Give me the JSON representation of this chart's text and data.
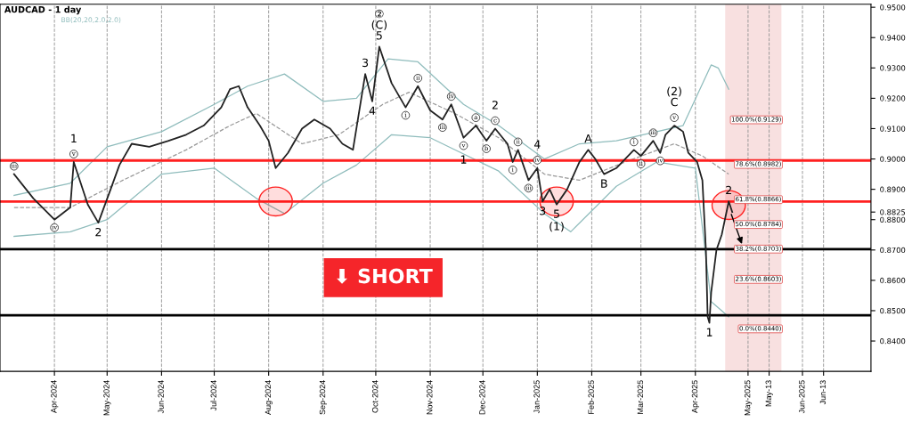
{
  "chart_data": {
    "type": "line",
    "title": "AUDCAD - 1 day",
    "xlim": [
      "2024-03-01",
      "2025-07-10"
    ],
    "xticks": [
      {
        "value": "2024-04-01",
        "label": "Apr-2024"
      },
      {
        "value": "2024-05-01",
        "label": "May-2024"
      },
      {
        "value": "2024-06-01",
        "label": "Jun-2024"
      },
      {
        "value": "2024-07-01",
        "label": "Jul-2024"
      },
      {
        "value": "2024-08-01",
        "label": "Aug-2024"
      },
      {
        "value": "2024-09-01",
        "label": "Sep-2024"
      },
      {
        "value": "2024-10-01",
        "label": "Oct-2024"
      },
      {
        "value": "2024-11-01",
        "label": "Nov-2024"
      },
      {
        "value": "2024-12-01",
        "label": "Dec-2024"
      },
      {
        "value": "2025-01-01",
        "label": "Jan-2025"
      },
      {
        "value": "2025-02-01",
        "label": "Feb-2025"
      },
      {
        "value": "2025-03-01",
        "label": "Mar-2025"
      },
      {
        "value": "2025-04-01",
        "label": "Apr-2025"
      },
      {
        "value": "2025-05-01",
        "label": "May-2025"
      },
      {
        "value": "2025-05-13",
        "label": "May-13"
      },
      {
        "value": "2025-06-01",
        "label": "Jun-2025"
      },
      {
        "value": "2025-06-13",
        "label": "Jun-13"
      }
    ],
    "ylim": [
      0.83,
      0.951
    ],
    "yticks": [
      {
        "value": 0.84,
        "label": "0.8400"
      },
      {
        "value": 0.85,
        "label": "0.8500"
      },
      {
        "value": 0.86,
        "label": "0.8600"
      },
      {
        "value": 0.87,
        "label": "0.8700"
      },
      {
        "value": 0.88,
        "label": "0.8800"
      },
      {
        "value": 0.8825,
        "label": "0.8825"
      },
      {
        "value": 0.89,
        "label": "0.8900"
      },
      {
        "value": 0.9,
        "label": "0.9000"
      },
      {
        "value": 0.91,
        "label": "0.9100"
      },
      {
        "value": 0.92,
        "label": "0.9200"
      },
      {
        "value": 0.93,
        "label": "0.9300"
      },
      {
        "value": 0.94,
        "label": "0.9400"
      },
      {
        "value": 0.95,
        "label": "0.9500"
      }
    ],
    "grid": "x",
    "marker": "none",
    "legend": false,
    "series": [
      {
        "color": "#222222",
        "line_style": "solid",
        "x": [
          "2024-03-09",
          "2024-03-20",
          "2024-04-01",
          "2024-04-10",
          "2024-04-12",
          "2024-04-20",
          "2024-04-26",
          "2024-05-03",
          "2024-05-08",
          "2024-05-15",
          "2024-05-25",
          "2024-06-05",
          "2024-06-15",
          "2024-06-25",
          "2024-07-05",
          "2024-07-10",
          "2024-07-15",
          "2024-07-20",
          "2024-07-27",
          "2024-08-01",
          "2024-08-05",
          "2024-08-12",
          "2024-08-20",
          "2024-08-27",
          "2024-09-05",
          "2024-09-12",
          "2024-09-18",
          "2024-09-25",
          "2024-09-29",
          "2024-10-03",
          "2024-10-10",
          "2024-10-18",
          "2024-10-25",
          "2024-11-01",
          "2024-11-08",
          "2024-11-13",
          "2024-11-20",
          "2024-11-27",
          "2024-12-03",
          "2024-12-08",
          "2024-12-15",
          "2024-12-18",
          "2024-12-21",
          "2024-12-27",
          "2025-01-01",
          "2025-01-04",
          "2025-01-08",
          "2025-01-12",
          "2025-01-18",
          "2025-01-25",
          "2025-01-30",
          "2025-02-03",
          "2025-02-08",
          "2025-02-15",
          "2025-02-25",
          "2025-03-01",
          "2025-03-08",
          "2025-03-12",
          "2025-03-15",
          "2025-03-20",
          "2025-03-25",
          "2025-03-28",
          "2025-04-02",
          "2025-04-05",
          "2025-04-07",
          "2025-04-08",
          "2025-04-09",
          "2025-04-10",
          "2025-04-13",
          "2025-04-16",
          "2025-04-20",
          "2025-04-22"
        ],
        "values": [
          0.895,
          0.887,
          0.88,
          0.884,
          0.899,
          0.885,
          0.879,
          0.89,
          0.898,
          0.905,
          0.904,
          0.906,
          0.908,
          0.911,
          0.917,
          0.923,
          0.924,
          0.917,
          0.911,
          0.906,
          0.897,
          0.902,
          0.91,
          0.913,
          0.91,
          0.905,
          0.903,
          0.928,
          0.919,
          0.937,
          0.925,
          0.917,
          0.924,
          0.916,
          0.913,
          0.918,
          0.907,
          0.911,
          0.906,
          0.91,
          0.905,
          0.899,
          0.903,
          0.893,
          0.897,
          0.886,
          0.89,
          0.885,
          0.89,
          0.899,
          0.903,
          0.9,
          0.895,
          0.897,
          0.903,
          0.901,
          0.906,
          0.902,
          0.908,
          0.911,
          0.909,
          0.902,
          0.899,
          0.893,
          0.87,
          0.848,
          0.846,
          0.856,
          0.87,
          0.875,
          0.886,
          0.8825
        ]
      },
      {
        "color": "#8fbcbc",
        "line_style": "solid",
        "x": [
          "2024-03-09",
          "2024-04-10",
          "2024-05-01",
          "2024-06-01",
          "2024-07-01",
          "2024-07-20",
          "2024-08-10",
          "2024-09-01",
          "2024-09-20",
          "2024-10-08",
          "2024-10-25",
          "2024-11-20",
          "2024-12-10",
          "2025-01-05",
          "2025-01-25",
          "2025-02-15",
          "2025-03-10",
          "2025-03-25",
          "2025-04-10",
          "2025-04-14",
          "2025-04-20"
        ],
        "values": [
          0.888,
          0.892,
          0.904,
          0.909,
          0.918,
          0.924,
          0.928,
          0.919,
          0.92,
          0.933,
          0.932,
          0.918,
          0.911,
          0.9,
          0.905,
          0.906,
          0.909,
          0.911,
          0.931,
          0.93,
          0.923
        ]
      },
      {
        "color": "#999999",
        "line_style": "dashed",
        "x": [
          "2024-03-09",
          "2024-04-10",
          "2024-05-10",
          "2024-06-15",
          "2024-07-10",
          "2024-07-25",
          "2024-08-20",
          "2024-09-10",
          "2024-10-05",
          "2024-10-20",
          "2024-11-15",
          "2024-12-10",
          "2025-01-05",
          "2025-01-25",
          "2025-02-20",
          "2025-03-20",
          "2025-04-05",
          "2025-04-20"
        ],
        "values": [
          0.884,
          0.884,
          0.893,
          0.903,
          0.911,
          0.915,
          0.905,
          0.908,
          0.918,
          0.922,
          0.915,
          0.907,
          0.895,
          0.893,
          0.899,
          0.905,
          0.901,
          0.895
        ]
      },
      {
        "color": "#8fbcbc",
        "line_style": "solid",
        "x": [
          "2024-03-09",
          "2024-04-10",
          "2024-05-01",
          "2024-06-01",
          "2024-07-01",
          "2024-07-25",
          "2024-08-10",
          "2024-09-01",
          "2024-09-20",
          "2024-10-10",
          "2024-11-01",
          "2024-12-10",
          "2025-01-05",
          "2025-01-20",
          "2025-02-15",
          "2025-03-10",
          "2025-04-01",
          "2025-04-10",
          "2025-04-20"
        ],
        "values": [
          0.8745,
          0.876,
          0.88,
          0.895,
          0.897,
          0.887,
          0.882,
          0.892,
          0.898,
          0.908,
          0.907,
          0.896,
          0.882,
          0.876,
          0.891,
          0.899,
          0.897,
          0.853,
          0.848
        ]
      }
    ],
    "ref_lines": [
      {
        "axis": "y",
        "value": 0.8995,
        "color": "#ff2020"
      },
      {
        "axis": "y",
        "value": 0.886,
        "color": "#ff2020"
      },
      {
        "axis": "y",
        "value": 0.8703,
        "color": "#000000"
      },
      {
        "axis": "y",
        "value": 0.8485,
        "color": "#000000"
      }
    ],
    "bands": [
      {
        "axis": "x",
        "from": "2025-04-18",
        "to": "2025-05-20",
        "color": "#f8e0e0"
      }
    ],
    "annotations": [
      "BB(20,20,2.0,2.0)",
      "⬇ SHORT",
      {
        "text": "100.0%(0.9129)",
        "x": "2025-05-20",
        "y": 0.9129
      },
      {
        "text": "78.6%(0.8982)",
        "x": "2025-05-20",
        "y": 0.8982
      },
      {
        "text": "61.8%(0.8866)",
        "x": "2025-05-20",
        "y": 0.8866
      },
      {
        "text": "50.0%(0.8784)",
        "x": "2025-05-20",
        "y": 0.8784
      },
      {
        "text": "38.2%(0.8703)",
        "x": "2025-05-20",
        "y": 0.8703
      },
      {
        "text": "23.6%(0.8603)",
        "x": "2025-05-20",
        "y": 0.8603
      },
      {
        "text": "0.0%(0.8440)",
        "x": "2025-05-20",
        "y": 0.844
      },
      {
        "text": "iii",
        "x": "2024-03-09",
        "y": 0.895
      },
      {
        "text": "v",
        "x": "2024-04-12",
        "y": 0.899
      },
      {
        "text": "1",
        "x": "2024-04-12",
        "y": 0.899
      },
      {
        "text": "iv",
        "x": "2024-04-01",
        "y": 0.88
      },
      {
        "text": "2",
        "x": "2024-04-26",
        "y": 0.879
      },
      {
        "text": "②\n(C)\n5",
        "x": "2024-10-03",
        "y": 0.937
      },
      {
        "text": "3",
        "x": "2024-09-25",
        "y": 0.928
      },
      {
        "text": "4",
        "x": "2024-09-29",
        "y": 0.919
      },
      {
        "text": "i",
        "x": "2024-10-18",
        "y": 0.917
      },
      {
        "text": "ii",
        "x": "2024-10-25",
        "y": 0.924
      },
      {
        "text": "iii",
        "x": "2024-11-08",
        "y": 0.913
      },
      {
        "text": "iv",
        "x": "2024-11-13",
        "y": 0.918
      },
      {
        "text": "v",
        "x": "2024-11-20",
        "y": 0.907
      },
      {
        "text": "1",
        "x": "2024-11-20",
        "y": 0.907
      },
      {
        "text": "a",
        "x": "2024-11-27",
        "y": 0.911
      },
      {
        "text": "b",
        "x": "2024-12-03",
        "y": 0.906
      },
      {
        "text": "c",
        "x": "2024-12-08",
        "y": 0.91
      },
      {
        "text": "2",
        "x": "2024-12-08",
        "y": 0.91
      },
      {
        "text": "i",
        "x": "2024-12-18",
        "y": 0.899
      },
      {
        "text": "ii",
        "x": "2024-12-21",
        "y": 0.903
      },
      {
        "text": "iii",
        "x": "2024-12-27",
        "y": 0.893
      },
      {
        "text": "iv",
        "x": "2025-01-01",
        "y": 0.897
      },
      {
        "text": "4",
        "x": "2025-01-01",
        "y": 0.897
      },
      {
        "text": "3",
        "x": "2025-01-04",
        "y": 0.886
      },
      {
        "text": "5",
        "x": "2025-01-12",
        "y": 0.885
      },
      {
        "text": "(1)",
        "x": "2025-01-12",
        "y": 0.885
      },
      {
        "text": "A",
        "x": "2025-01-30",
        "y": 0.903
      },
      {
        "text": "B",
        "x": "2025-02-08",
        "y": 0.895
      },
      {
        "text": "i",
        "x": "2025-02-25",
        "y": 0.903
      },
      {
        "text": "ii",
        "x": "2025-03-01",
        "y": 0.901
      },
      {
        "text": "iii",
        "x": "2025-03-08",
        "y": 0.906
      },
      {
        "text": "iv",
        "x": "2025-03-12",
        "y": 0.902
      },
      {
        "text": "v",
        "x": "2025-03-20",
        "y": 0.911
      },
      {
        "text": "(2)\nC",
        "x": "2025-03-20",
        "y": 0.911
      },
      {
        "text": "2",
        "x": "2025-04-20",
        "y": 0.886
      },
      {
        "text": "1",
        "x": "2025-04-09",
        "y": 0.846
      }
    ]
  }
}
